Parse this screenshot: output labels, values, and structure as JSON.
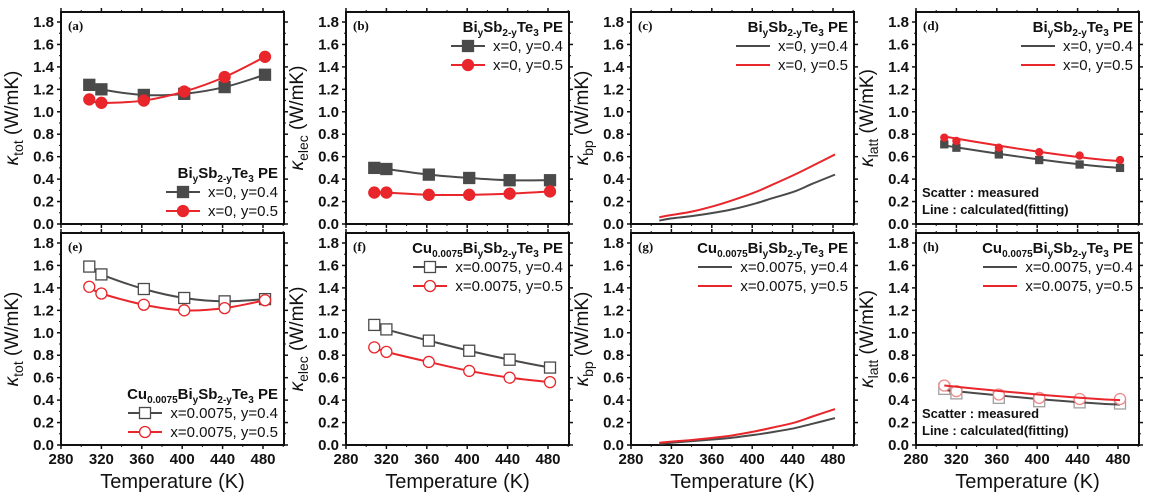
{
  "chart_data": [
    {
      "id": "a",
      "type": "line",
      "panel_label": "(a)",
      "ylabel_symbol": "κ",
      "ylabel_sub": "tot",
      "ylabel_unit": " (W/mK)",
      "xlabel": "Temperature (K)",
      "xlim": [
        280,
        500
      ],
      "ylim": [
        0,
        1.9
      ],
      "xticks": [
        280,
        320,
        360,
        400,
        440,
        480
      ],
      "yticks": [
        0.0,
        0.2,
        0.4,
        0.6,
        0.8,
        1.0,
        1.2,
        1.4,
        1.6,
        1.8
      ],
      "legend": {
        "title": "BiySb2-yTe3 PE",
        "title_parts": [
          [
            "Bi",
            ""
          ],
          [
            "y",
            "sub"
          ],
          [
            "Sb",
            ""
          ],
          [
            "2-y",
            "sub"
          ],
          [
            "Te",
            ""
          ],
          [
            "3",
            "sub"
          ],
          [
            " PE",
            ""
          ]
        ],
        "placement": "bottom-right"
      },
      "note": [],
      "series": [
        {
          "name": "x=0, y=0.4",
          "color": "#4a4a4a",
          "marker": "square",
          "filled": true,
          "line": "connect",
          "x": [
            308,
            320,
            362,
            402,
            442,
            482
          ],
          "y": [
            1.24,
            1.2,
            1.15,
            1.16,
            1.22,
            1.33
          ]
        },
        {
          "name": "x=0, y=0.5",
          "color": "#e8262b",
          "marker": "circle",
          "filled": true,
          "line": "connect",
          "x": [
            308,
            320,
            362,
            402,
            442,
            482
          ],
          "y": [
            1.11,
            1.08,
            1.1,
            1.18,
            1.31,
            1.49
          ]
        }
      ]
    },
    {
      "id": "b",
      "type": "line",
      "panel_label": "(b)",
      "ylabel_symbol": "κ",
      "ylabel_sub": "elec",
      "ylabel_unit": " (W/mK)",
      "xlabel": "Temperature (K)",
      "xlim": [
        280,
        500
      ],
      "ylim": [
        0,
        1.9
      ],
      "xticks": [
        280,
        320,
        360,
        400,
        440,
        480
      ],
      "yticks": [
        0.0,
        0.2,
        0.4,
        0.6,
        0.8,
        1.0,
        1.2,
        1.4,
        1.6,
        1.8
      ],
      "legend": {
        "title": "BiySb2-yTe3 PE",
        "title_parts": [
          [
            "Bi",
            ""
          ],
          [
            "y",
            "sub"
          ],
          [
            "Sb",
            ""
          ],
          [
            "2-y",
            "sub"
          ],
          [
            "Te",
            ""
          ],
          [
            "3",
            "sub"
          ],
          [
            " PE",
            ""
          ]
        ],
        "placement": "top-right"
      },
      "note": [],
      "series": [
        {
          "name": "x=0, y=0.4",
          "color": "#4a4a4a",
          "marker": "square",
          "filled": true,
          "line": "connect",
          "x": [
            308,
            320,
            362,
            402,
            442,
            482
          ],
          "y": [
            0.5,
            0.49,
            0.44,
            0.41,
            0.39,
            0.39
          ]
        },
        {
          "name": "x=0, y=0.5",
          "color": "#e8262b",
          "marker": "circle",
          "filled": true,
          "line": "connect",
          "x": [
            308,
            320,
            362,
            402,
            442,
            482
          ],
          "y": [
            0.28,
            0.28,
            0.26,
            0.26,
            0.27,
            0.29
          ]
        }
      ]
    },
    {
      "id": "c",
      "type": "line",
      "panel_label": "(c)",
      "ylabel_symbol": "κ",
      "ylabel_sub": "bp",
      "ylabel_unit": " (W/mK)",
      "xlabel": "Temperature (K)",
      "xlim": [
        280,
        500
      ],
      "ylim": [
        0,
        1.9
      ],
      "xticks": [
        280,
        320,
        360,
        400,
        440,
        480
      ],
      "yticks": [
        0.0,
        0.2,
        0.4,
        0.6,
        0.8,
        1.0,
        1.2,
        1.4,
        1.6,
        1.8
      ],
      "legend": {
        "title": "BiySb2-yTe3 PE",
        "title_parts": [
          [
            "Bi",
            ""
          ],
          [
            "y",
            "sub"
          ],
          [
            "Sb",
            ""
          ],
          [
            "2-y",
            "sub"
          ],
          [
            "Te",
            ""
          ],
          [
            "3",
            "sub"
          ],
          [
            " PE",
            ""
          ]
        ],
        "placement": "top-right"
      },
      "note": [],
      "series": [
        {
          "name": "x=0, y=0.4",
          "color": "#4a4a4a",
          "marker": "none",
          "filled": false,
          "line": "connect",
          "x": [
            308,
            320,
            340,
            362,
            380,
            402,
            420,
            442,
            460,
            482
          ],
          "y": [
            0.03,
            0.05,
            0.07,
            0.1,
            0.13,
            0.18,
            0.23,
            0.29,
            0.36,
            0.44
          ]
        },
        {
          "name": "x=0, y=0.5",
          "color": "#e8262b",
          "marker": "none",
          "filled": false,
          "line": "connect",
          "x": [
            308,
            320,
            340,
            362,
            380,
            402,
            420,
            442,
            460,
            482
          ],
          "y": [
            0.06,
            0.08,
            0.11,
            0.16,
            0.21,
            0.28,
            0.35,
            0.44,
            0.52,
            0.62
          ]
        }
      ]
    },
    {
      "id": "d",
      "type": "scatter",
      "panel_label": "(d)",
      "ylabel_symbol": "κ",
      "ylabel_sub": "latt",
      "ylabel_unit": " (W/mK)",
      "xlabel": "Temperature (K)",
      "xlim": [
        280,
        500
      ],
      "ylim": [
        0,
        1.9
      ],
      "xticks": [
        280,
        320,
        360,
        400,
        440,
        480
      ],
      "yticks": [
        0.0,
        0.2,
        0.4,
        0.6,
        0.8,
        1.0,
        1.2,
        1.4,
        1.6,
        1.8
      ],
      "legend": {
        "title": "BiySb2-yTe3 PE",
        "title_parts": [
          [
            "Bi",
            ""
          ],
          [
            "y",
            "sub"
          ],
          [
            "Sb",
            ""
          ],
          [
            "2-y",
            "sub"
          ],
          [
            "Te",
            ""
          ],
          [
            "3",
            "sub"
          ],
          [
            " PE",
            ""
          ]
        ],
        "placement": "top-right",
        "line_only": true
      },
      "note": [
        "Scatter : measured",
        "Line : calculated(fitting)"
      ],
      "series": [
        {
          "name": "x=0, y=0.4",
          "color": "#4a4a4a",
          "marker": "square",
          "filled": true,
          "line": "fit",
          "marker_size": "small",
          "x": [
            308,
            320,
            362,
            402,
            442,
            482
          ],
          "y": [
            0.71,
            0.68,
            0.62,
            0.57,
            0.53,
            0.5
          ],
          "fit_x": [
            308,
            482
          ],
          "fit_y": [
            0.7,
            0.5
          ]
        },
        {
          "name": "x=0, y=0.5",
          "color": "#e8262b",
          "marker": "circle",
          "filled": true,
          "line": "fit",
          "marker_size": "small",
          "x": [
            308,
            320,
            362,
            402,
            442,
            482
          ],
          "y": [
            0.77,
            0.74,
            0.68,
            0.64,
            0.61,
            0.57
          ],
          "fit_x": [
            308,
            482
          ],
          "fit_y": [
            0.78,
            0.56
          ]
        }
      ]
    },
    {
      "id": "e",
      "type": "line",
      "panel_label": "(e)",
      "ylabel_symbol": "κ",
      "ylabel_sub": "tot",
      "ylabel_unit": " (W/mK)",
      "xlabel": "Temperature (K)",
      "xlim": [
        280,
        500
      ],
      "ylim": [
        0,
        1.9
      ],
      "xticks": [
        280,
        320,
        360,
        400,
        440,
        480
      ],
      "yticks": [
        0.0,
        0.2,
        0.4,
        0.6,
        0.8,
        1.0,
        1.2,
        1.4,
        1.6,
        1.8
      ],
      "legend": {
        "title": "Cu0.0075BiySb2-yTe3 PE",
        "title_parts": [
          [
            "Cu",
            ""
          ],
          [
            "0.0075",
            "sub"
          ],
          [
            "Bi",
            ""
          ],
          [
            "y",
            "sub"
          ],
          [
            "Sb",
            ""
          ],
          [
            "2-y",
            "sub"
          ],
          [
            "Te",
            ""
          ],
          [
            "3",
            "sub"
          ],
          [
            " PE",
            ""
          ]
        ],
        "placement": "bottom-right"
      },
      "note": [],
      "series": [
        {
          "name": "x=0.0075, y=0.4",
          "color": "#4a4a4a",
          "marker": "square",
          "filled": false,
          "line": "connect",
          "x": [
            308,
            320,
            362,
            402,
            442,
            482
          ],
          "y": [
            1.59,
            1.52,
            1.39,
            1.31,
            1.28,
            1.3
          ]
        },
        {
          "name": "x=0.0075, y=0.5",
          "color": "#e8262b",
          "marker": "circle",
          "filled": false,
          "line": "connect",
          "x": [
            308,
            320,
            362,
            402,
            442,
            482
          ],
          "y": [
            1.41,
            1.35,
            1.25,
            1.2,
            1.22,
            1.29
          ]
        }
      ]
    },
    {
      "id": "f",
      "type": "line",
      "panel_label": "(f)",
      "ylabel_symbol": "κ",
      "ylabel_sub": "elec",
      "ylabel_unit": " (W/mK)",
      "xlabel": "Temperature (K)",
      "xlim": [
        280,
        500
      ],
      "ylim": [
        0,
        1.9
      ],
      "xticks": [
        280,
        320,
        360,
        400,
        440,
        480
      ],
      "yticks": [
        0.0,
        0.2,
        0.4,
        0.6,
        0.8,
        1.0,
        1.2,
        1.4,
        1.6,
        1.8
      ],
      "legend": {
        "title": "Cu0.0075BiySb2-yTe3 PE",
        "title_parts": [
          [
            "Cu",
            ""
          ],
          [
            "0.0075",
            "sub"
          ],
          [
            "Bi",
            ""
          ],
          [
            "y",
            "sub"
          ],
          [
            "Sb",
            ""
          ],
          [
            "2-y",
            "sub"
          ],
          [
            "Te",
            ""
          ],
          [
            "3",
            "sub"
          ],
          [
            " PE",
            ""
          ]
        ],
        "placement": "top-right"
      },
      "note": [],
      "series": [
        {
          "name": "x=0.0075, y=0.4",
          "color": "#4a4a4a",
          "marker": "square",
          "filled": false,
          "line": "connect",
          "x": [
            308,
            320,
            362,
            402,
            442,
            482
          ],
          "y": [
            1.07,
            1.03,
            0.93,
            0.84,
            0.76,
            0.69
          ]
        },
        {
          "name": "x=0.0075, y=0.5",
          "color": "#e8262b",
          "marker": "circle",
          "filled": false,
          "line": "connect",
          "x": [
            308,
            320,
            362,
            402,
            442,
            482
          ],
          "y": [
            0.87,
            0.83,
            0.74,
            0.66,
            0.6,
            0.56
          ]
        }
      ]
    },
    {
      "id": "g",
      "type": "line",
      "panel_label": "(g)",
      "ylabel_symbol": "κ",
      "ylabel_sub": "bp",
      "ylabel_unit": " (W/mK)",
      "xlabel": "Temperature (K)",
      "xlim": [
        280,
        500
      ],
      "ylim": [
        0,
        1.9
      ],
      "xticks": [
        280,
        320,
        360,
        400,
        440,
        480
      ],
      "yticks": [
        0.0,
        0.2,
        0.4,
        0.6,
        0.8,
        1.0,
        1.2,
        1.4,
        1.6,
        1.8
      ],
      "legend": {
        "title": "Cu0.0075BiySb2-yTe3 PE",
        "title_parts": [
          [
            "Cu",
            ""
          ],
          [
            "0.0075",
            "sub"
          ],
          [
            "Bi",
            ""
          ],
          [
            "y",
            "sub"
          ],
          [
            "Sb",
            ""
          ],
          [
            "2-y",
            "sub"
          ],
          [
            "Te",
            ""
          ],
          [
            "3",
            "sub"
          ],
          [
            " PE",
            ""
          ]
        ],
        "placement": "top-right"
      },
      "note": [],
      "series": [
        {
          "name": "x=0.0075, y=0.4",
          "color": "#4a4a4a",
          "marker": "none",
          "filled": false,
          "line": "connect",
          "x": [
            308,
            320,
            340,
            362,
            380,
            402,
            420,
            442,
            460,
            482
          ],
          "y": [
            0.01,
            0.02,
            0.035,
            0.05,
            0.065,
            0.09,
            0.115,
            0.15,
            0.19,
            0.24
          ]
        },
        {
          "name": "x=0.0075, y=0.5",
          "color": "#e8262b",
          "marker": "none",
          "filled": false,
          "line": "connect",
          "x": [
            308,
            320,
            340,
            362,
            380,
            402,
            420,
            442,
            460,
            482
          ],
          "y": [
            0.02,
            0.03,
            0.045,
            0.065,
            0.085,
            0.12,
            0.155,
            0.2,
            0.255,
            0.32
          ]
        }
      ]
    },
    {
      "id": "h",
      "type": "scatter",
      "panel_label": "(h)",
      "ylabel_symbol": "κ",
      "ylabel_sub": "latt",
      "ylabel_unit": " (W/mK)",
      "xlabel": "Temperature (K)",
      "xlim": [
        280,
        500
      ],
      "ylim": [
        0,
        1.9
      ],
      "xticks": [
        280,
        320,
        360,
        400,
        440,
        480
      ],
      "yticks": [
        0.0,
        0.2,
        0.4,
        0.6,
        0.8,
        1.0,
        1.2,
        1.4,
        1.6,
        1.8
      ],
      "legend": {
        "title": "Cu0.0075BiySb2-yTe3 PE",
        "title_parts": [
          [
            "Cu",
            ""
          ],
          [
            "0.0075",
            "sub"
          ],
          [
            "Bi",
            ""
          ],
          [
            "y",
            "sub"
          ],
          [
            "Sb",
            ""
          ],
          [
            "2-y",
            "sub"
          ],
          [
            "Te",
            ""
          ],
          [
            "3",
            "sub"
          ],
          [
            " PE",
            ""
          ]
        ],
        "placement": "top-right",
        "line_only": true
      },
      "note": [
        "Scatter : measured",
        "Line : calculated(fitting)"
      ],
      "series": [
        {
          "name": "x=0.0075, y=0.4",
          "color": "#4a4a4a",
          "marker": "square",
          "filled": false,
          "line": "fit",
          "marker_color": "#a0a0a0",
          "x": [
            308,
            320,
            362,
            402,
            442,
            482
          ],
          "y": [
            0.5,
            0.46,
            0.42,
            0.39,
            0.38,
            0.37
          ],
          "fit_x": [
            308,
            482
          ],
          "fit_y": [
            0.49,
            0.36
          ]
        },
        {
          "name": "x=0.0075, y=0.5",
          "color": "#e8262b",
          "marker": "circle",
          "filled": false,
          "line": "fit",
          "marker_color": "#f08a8a",
          "x": [
            308,
            320,
            362,
            402,
            442,
            482
          ],
          "y": [
            0.53,
            0.48,
            0.45,
            0.42,
            0.41,
            0.41
          ],
          "fit_x": [
            308,
            482
          ],
          "fit_y": [
            0.53,
            0.4
          ]
        }
      ]
    }
  ]
}
